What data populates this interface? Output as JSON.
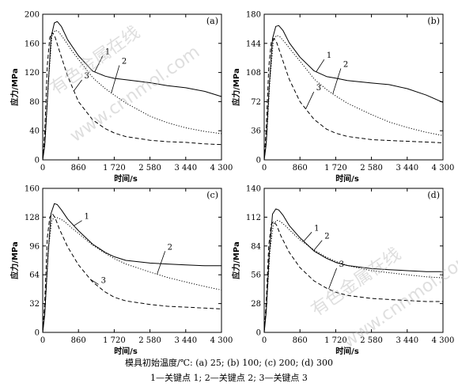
{
  "watermarks": [
    "有色金属在线",
    "www.cnnmol.com"
  ],
  "caption_line1": "模具初始温度/℃: (a) 25; (b) 100; (c) 200; (d) 300",
  "caption_line2": "1—关键点 1; 2—关键点 2; 3—关键点 3",
  "chart_data": [
    {
      "type": "line",
      "panel": "(a)",
      "xlabel": "时间/s",
      "ylabel": "应力/MPa",
      "xlim": [
        0,
        4300
      ],
      "ylim": [
        0,
        200
      ],
      "xticks": [
        0,
        860,
        1720,
        2580,
        3440,
        4300
      ],
      "xtick_labels": [
        "0",
        "860",
        "1 720",
        "2 580",
        "3 440",
        "4 300"
      ],
      "yticks": [
        0,
        40,
        80,
        120,
        160,
        200
      ],
      "ytick_labels": [
        "0",
        "40",
        "80",
        "120",
        "160",
        "200"
      ],
      "series": [
        {
          "name": "1",
          "style": "solid",
          "points": [
            [
              0,
              0
            ],
            [
              50,
              20
            ],
            [
              120,
              90
            ],
            [
              200,
              168
            ],
            [
              280,
              188
            ],
            [
              350,
              190
            ],
            [
              450,
              183
            ],
            [
              600,
              165
            ],
            [
              860,
              143
            ],
            [
              1200,
              122
            ],
            [
              1500,
              115
            ],
            [
              1720,
              112
            ],
            [
              2000,
              110
            ],
            [
              2580,
              106
            ],
            [
              3000,
              102
            ],
            [
              3440,
              99
            ],
            [
              3900,
              94
            ],
            [
              4300,
              87
            ]
          ]
        },
        {
          "name": "2",
          "style": "dotted",
          "points": [
            [
              0,
              0
            ],
            [
              60,
              30
            ],
            [
              140,
              110
            ],
            [
              220,
              170
            ],
            [
              300,
              178
            ],
            [
              380,
              176
            ],
            [
              500,
              167
            ],
            [
              700,
              150
            ],
            [
              860,
              138
            ],
            [
              1200,
              113
            ],
            [
              1500,
              98
            ],
            [
              1720,
              89
            ],
            [
              2000,
              78
            ],
            [
              2580,
              60
            ],
            [
              3000,
              51
            ],
            [
              3440,
              44
            ],
            [
              3900,
              39
            ],
            [
              4300,
              36
            ]
          ]
        },
        {
          "name": "3",
          "style": "dashed",
          "points": [
            [
              0,
              0
            ],
            [
              50,
              40
            ],
            [
              110,
              130
            ],
            [
              170,
              168
            ],
            [
              230,
              175
            ],
            [
              300,
              168
            ],
            [
              400,
              150
            ],
            [
              600,
              115
            ],
            [
              860,
              80
            ],
            [
              1200,
              55
            ],
            [
              1500,
              43
            ],
            [
              1720,
              37
            ],
            [
              2000,
              32
            ],
            [
              2580,
              27
            ],
            [
              3000,
              25
            ],
            [
              3440,
              24
            ],
            [
              3900,
              22
            ],
            [
              4300,
              21
            ]
          ]
        }
      ],
      "series_label_anchors": [
        [
          1500,
          145
        ],
        [
          1900,
          132
        ],
        [
          1000,
          112
        ]
      ]
    },
    {
      "type": "line",
      "panel": "(b)",
      "xlabel": "时间/s",
      "ylabel": "应力/MPa",
      "xlim": [
        0,
        4300
      ],
      "ylim": [
        0,
        180
      ],
      "xticks": [
        0,
        860,
        1720,
        2580,
        3440,
        4300
      ],
      "xtick_labels": [
        "0",
        "860",
        "1 720",
        "2 580",
        "3 440",
        "4 300"
      ],
      "yticks": [
        0,
        36,
        72,
        108,
        144,
        180
      ],
      "ytick_labels": [
        "0",
        "36",
        "72",
        "108",
        "144",
        "180"
      ],
      "series": [
        {
          "name": "1",
          "style": "solid",
          "points": [
            [
              0,
              0
            ],
            [
              50,
              20
            ],
            [
              120,
              90
            ],
            [
              200,
              150
            ],
            [
              280,
              165
            ],
            [
              350,
              166
            ],
            [
              450,
              160
            ],
            [
              600,
              145
            ],
            [
              860,
              127
            ],
            [
              1200,
              110
            ],
            [
              1500,
              103
            ],
            [
              1720,
              101
            ],
            [
              2000,
              98
            ],
            [
              2580,
              95
            ],
            [
              3000,
              93
            ],
            [
              3440,
              88
            ],
            [
              3900,
              80
            ],
            [
              4300,
              71
            ]
          ]
        },
        {
          "name": "2",
          "style": "dotted",
          "points": [
            [
              0,
              0
            ],
            [
              60,
              30
            ],
            [
              140,
              100
            ],
            [
              220,
              148
            ],
            [
              300,
              154
            ],
            [
              380,
              152
            ],
            [
              500,
              145
            ],
            [
              700,
              132
            ],
            [
              860,
              122
            ],
            [
              1200,
              100
            ],
            [
              1500,
              87
            ],
            [
              1720,
              79
            ],
            [
              2000,
              70
            ],
            [
              2580,
              56
            ],
            [
              3000,
              47
            ],
            [
              3440,
              40
            ],
            [
              3900,
              34
            ],
            [
              4300,
              30
            ]
          ]
        },
        {
          "name": "3",
          "style": "dashed",
          "points": [
            [
              0,
              0
            ],
            [
              50,
              40
            ],
            [
              110,
              115
            ],
            [
              170,
              145
            ],
            [
              230,
              150
            ],
            [
              300,
              145
            ],
            [
              400,
              130
            ],
            [
              600,
              100
            ],
            [
              860,
              72
            ],
            [
              1200,
              50
            ],
            [
              1500,
              38
            ],
            [
              1720,
              33
            ],
            [
              2000,
              29
            ],
            [
              2580,
              25
            ],
            [
              3000,
              24
            ],
            [
              3440,
              23
            ],
            [
              3900,
              22
            ],
            [
              4300,
              21
            ]
          ]
        }
      ],
      "series_label_anchors": [
        [
          1500,
          126
        ],
        [
          1900,
          115
        ],
        [
          1250,
          86
        ]
      ]
    },
    {
      "type": "line",
      "panel": "(c)",
      "xlabel": "时间/s",
      "ylabel": "应力/MPa",
      "xlim": [
        0,
        4300
      ],
      "ylim": [
        0,
        160
      ],
      "xticks": [
        0,
        860,
        1720,
        2580,
        3440,
        4300
      ],
      "xtick_labels": [
        "0",
        "860",
        "1 720",
        "2 580",
        "3 440",
        "4 300"
      ],
      "yticks": [
        0,
        32,
        64,
        96,
        128,
        160
      ],
      "ytick_labels": [
        "0",
        "32",
        "64",
        "96",
        "128",
        "160"
      ],
      "series": [
        {
          "name": "1",
          "style": "solid",
          "points": [
            [
              0,
              0
            ],
            [
              50,
              20
            ],
            [
              120,
              80
            ],
            [
              200,
              132
            ],
            [
              280,
              143
            ],
            [
              350,
              142
            ],
            [
              450,
              136
            ],
            [
              600,
              126
            ],
            [
              860,
              113
            ],
            [
              1200,
              98
            ],
            [
              1500,
              89
            ],
            [
              1720,
              84
            ],
            [
              2000,
              80
            ],
            [
              2580,
              77
            ],
            [
              3000,
              76
            ],
            [
              3440,
              75
            ],
            [
              3900,
              74
            ],
            [
              4300,
              74
            ]
          ]
        },
        {
          "name": "2",
          "style": "dotted",
          "points": [
            [
              0,
              0
            ],
            [
              60,
              30
            ],
            [
              140,
              95
            ],
            [
              220,
              125
            ],
            [
              300,
              128
            ],
            [
              380,
              127
            ],
            [
              500,
              124
            ],
            [
              700,
              116
            ],
            [
              860,
              110
            ],
            [
              1200,
              97
            ],
            [
              1500,
              88
            ],
            [
              1720,
              82
            ],
            [
              2000,
              76
            ],
            [
              2580,
              67
            ],
            [
              3000,
              61
            ],
            [
              3440,
              56
            ],
            [
              3900,
              51
            ],
            [
              4300,
              47
            ]
          ]
        },
        {
          "name": "3",
          "style": "dashed",
          "points": [
            [
              0,
              0
            ],
            [
              50,
              35
            ],
            [
              110,
              105
            ],
            [
              170,
              128
            ],
            [
              230,
              132
            ],
            [
              300,
              127
            ],
            [
              400,
              115
            ],
            [
              600,
              95
            ],
            [
              860,
              75
            ],
            [
              1200,
              56
            ],
            [
              1500,
              45
            ],
            [
              1720,
              39
            ],
            [
              2000,
              35
            ],
            [
              2580,
              31
            ],
            [
              3000,
              29
            ],
            [
              3440,
              28
            ],
            [
              3900,
              27
            ],
            [
              4300,
              26
            ]
          ]
        }
      ],
      "series_label_anchors": [
        [
          1000,
          126
        ],
        [
          3000,
          92
        ],
        [
          1400,
          55
        ]
      ]
    },
    {
      "type": "line",
      "panel": "(d)",
      "xlabel": "时间/s",
      "ylabel": "应力/MPa",
      "xlim": [
        0,
        4300
      ],
      "ylim": [
        0,
        140
      ],
      "xticks": [
        0,
        860,
        1720,
        2580,
        3440,
        4300
      ],
      "xtick_labels": [
        "0",
        "860",
        "1 720",
        "2 580",
        "3 440",
        "4 300"
      ],
      "yticks": [
        0,
        28,
        56,
        84,
        112,
        140
      ],
      "ytick_labels": [
        "0",
        "28",
        "56",
        "84",
        "112",
        "140"
      ],
      "series": [
        {
          "name": "1",
          "style": "solid",
          "points": [
            [
              0,
              0
            ],
            [
              50,
              20
            ],
            [
              120,
              75
            ],
            [
              200,
              115
            ],
            [
              280,
              120
            ],
            [
              350,
              119
            ],
            [
              450,
              114
            ],
            [
              600,
              104
            ],
            [
              860,
              92
            ],
            [
              1200,
              79
            ],
            [
              1500,
              72
            ],
            [
              1720,
              68
            ],
            [
              2000,
              65
            ],
            [
              2580,
              62
            ],
            [
              3000,
              61
            ],
            [
              3440,
              60
            ],
            [
              3900,
              59
            ],
            [
              4300,
              59
            ]
          ]
        },
        {
          "name": "2",
          "style": "dotted",
          "points": [
            [
              0,
              0
            ],
            [
              60,
              30
            ],
            [
              140,
              80
            ],
            [
              220,
              105
            ],
            [
              300,
              109
            ],
            [
              380,
              108
            ],
            [
              500,
              104
            ],
            [
              700,
              96
            ],
            [
              860,
              90
            ],
            [
              1200,
              80
            ],
            [
              1500,
              73
            ],
            [
              1720,
              69
            ],
            [
              2000,
              65
            ],
            [
              2580,
              60
            ],
            [
              3000,
              58
            ],
            [
              3440,
              56
            ],
            [
              3900,
              54
            ],
            [
              4300,
              53
            ]
          ]
        },
        {
          "name": "3",
          "style": "dashed",
          "points": [
            [
              0,
              0
            ],
            [
              50,
              30
            ],
            [
              110,
              85
            ],
            [
              170,
              105
            ],
            [
              230,
              108
            ],
            [
              300,
              104
            ],
            [
              400,
              94
            ],
            [
              600,
              78
            ],
            [
              860,
              63
            ],
            [
              1200,
              50
            ],
            [
              1500,
              43
            ],
            [
              1720,
              39
            ],
            [
              2000,
              36
            ],
            [
              2580,
              33
            ],
            [
              3000,
              32
            ],
            [
              3440,
              31
            ],
            [
              3900,
              30
            ],
            [
              4300,
              30
            ]
          ]
        }
      ],
      "series_label_anchors": [
        [
          1200,
          99
        ],
        [
          1450,
          91
        ],
        [
          1800,
          64
        ]
      ]
    }
  ]
}
